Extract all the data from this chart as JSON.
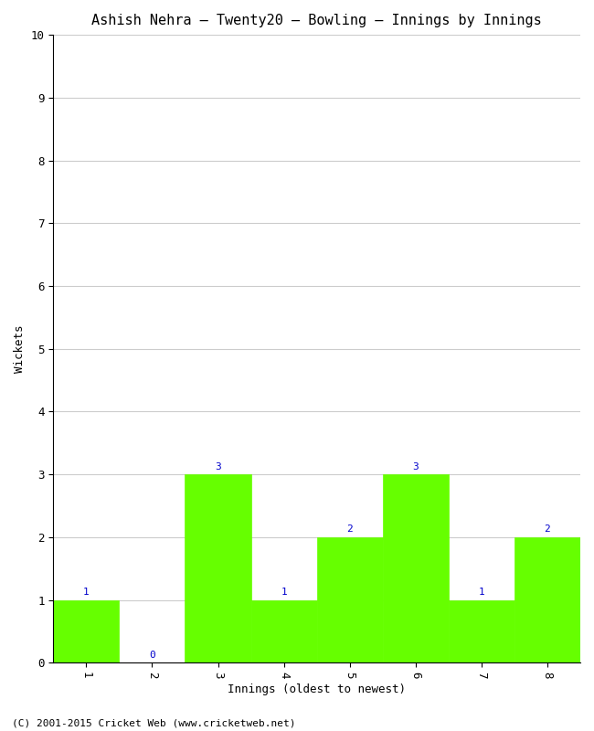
{
  "title": "Ashish Nehra – Twenty20 – Bowling – Innings by Innings",
  "xlabel": "Innings (oldest to newest)",
  "ylabel": "Wickets",
  "categories": [
    "1",
    "2",
    "3",
    "4",
    "5",
    "6",
    "7",
    "8"
  ],
  "values": [
    1,
    0,
    3,
    1,
    2,
    3,
    1,
    2
  ],
  "bar_color": "#66ff00",
  "bar_edge_color": "#66ff00",
  "ylim": [
    0,
    10
  ],
  "yticks": [
    0,
    1,
    2,
    3,
    4,
    5,
    6,
    7,
    8,
    9,
    10
  ],
  "label_color": "#0000cc",
  "label_fontsize": 8,
  "title_fontsize": 11,
  "axis_fontsize": 9,
  "tick_fontsize": 9,
  "background_color": "#ffffff",
  "grid_color": "#cccccc",
  "footer_text": "(C) 2001-2015 Cricket Web (www.cricketweb.net)",
  "footer_fontsize": 8
}
